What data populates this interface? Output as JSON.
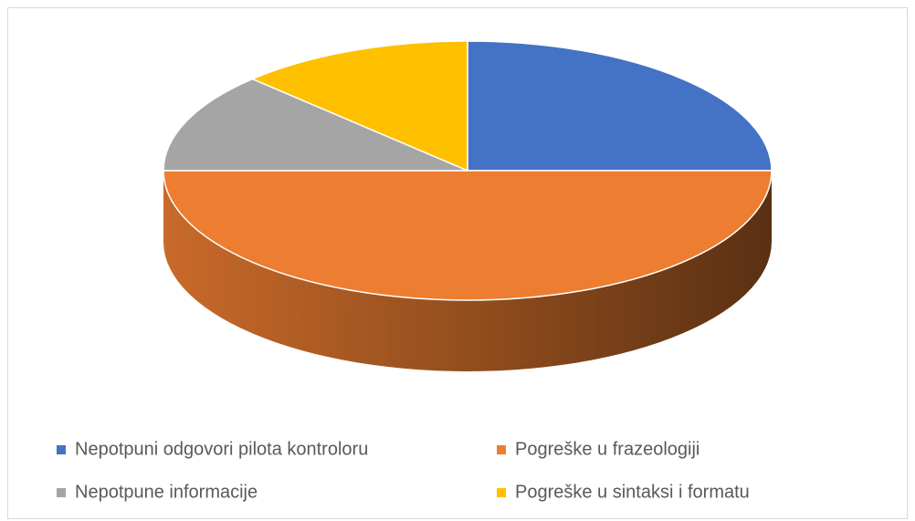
{
  "chart_data": {
    "type": "pie3d",
    "categories": [
      "Nepotpuni odgovori pilota kontroloru",
      "Pogreške u frazeologiji",
      "Nepotpune informacije",
      "Pogreške u sintaksi i formatu"
    ],
    "values": [
      25,
      50,
      12.5,
      12.5
    ],
    "colors": [
      "#4472c4",
      "#ed7d31",
      "#a5a5a5",
      "#ffc000"
    ],
    "legend": "bottom"
  }
}
